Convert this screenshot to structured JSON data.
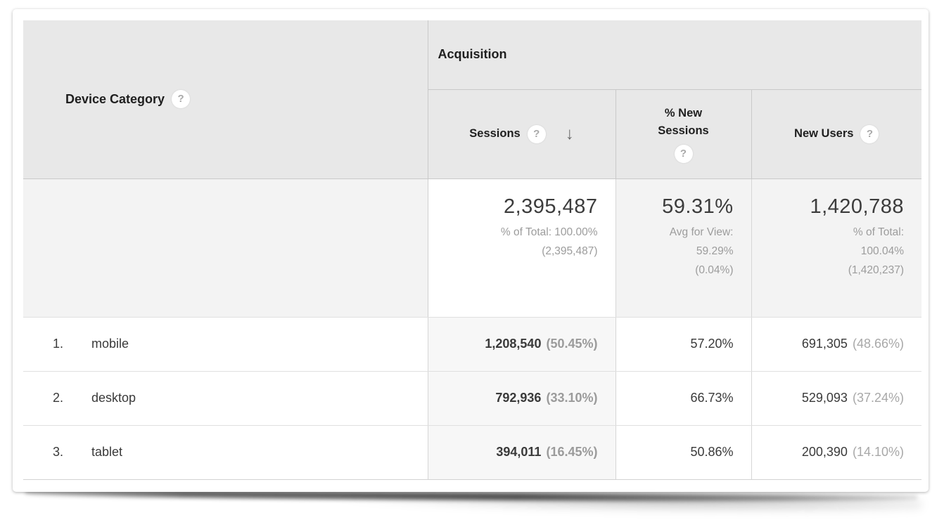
{
  "icons": {
    "help": "?",
    "sort_desc": "↓"
  },
  "colors": {
    "header_bg": "#e8e8e8",
    "summary_bg": "#f3f3f3",
    "sorted_column_bg": "#f7f7f7",
    "border": "#c9c9c9",
    "row_border": "#e0e0e0",
    "text_dark": "#1f1f1f",
    "text_gray": "#9c9c9c"
  },
  "table": {
    "dimension_header": "Device Category",
    "group_header": "Acquisition",
    "columns": {
      "sessions": "Sessions",
      "new_sessions_line1": "% New",
      "new_sessions_line2": "Sessions",
      "new_users": "New Users"
    },
    "summary": {
      "sessions_value": "2,395,487",
      "sessions_sub1": "% of Total: 100.00%",
      "sessions_sub2": "(2,395,487)",
      "new_sessions_value": "59.31%",
      "new_sessions_sub1": "Avg for View:",
      "new_sessions_sub2": "59.29%",
      "new_sessions_sub3": "(0.04%)",
      "new_users_value": "1,420,788",
      "new_users_sub1": "% of Total:",
      "new_users_sub2": "100.04%",
      "new_users_sub3": "(1,420,237)"
    },
    "rows": [
      {
        "index": "1.",
        "label": "mobile",
        "sessions": "1,208,540",
        "sessions_pct": "(50.45%)",
        "new_sessions": "57.20%",
        "new_users": "691,305",
        "new_users_pct": "(48.66%)"
      },
      {
        "index": "2.",
        "label": "desktop",
        "sessions": "792,936",
        "sessions_pct": "(33.10%)",
        "new_sessions": "66.73%",
        "new_users": "529,093",
        "new_users_pct": "(37.24%)"
      },
      {
        "index": "3.",
        "label": "tablet",
        "sessions": "394,011",
        "sessions_pct": "(16.45%)",
        "new_sessions": "50.86%",
        "new_users": "200,390",
        "new_users_pct": "(14.10%)"
      }
    ]
  }
}
